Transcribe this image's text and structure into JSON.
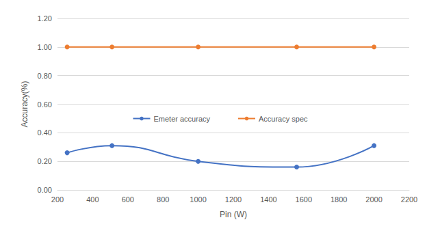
{
  "chart_data": {
    "type": "line",
    "x_label": "Pin (W)",
    "y_label": "Accuracy(%)",
    "x": [
      255,
      510,
      1000,
      1560,
      2000
    ],
    "series": [
      {
        "name": "Emeter accuracy",
        "color": "#4472c4",
        "values": [
          0.26,
          0.31,
          0.2,
          0.16,
          0.31
        ],
        "marker": "circle",
        "line_style": "smooth"
      },
      {
        "name": "Accuracy spec",
        "color": "#ed7d31",
        "values": [
          1.0,
          1.0,
          1.0,
          1.0,
          1.0
        ],
        "marker": "circle",
        "line_style": "solid"
      }
    ],
    "xlim": [
      200,
      2200
    ],
    "xticks": [
      200,
      400,
      600,
      800,
      1000,
      1200,
      1400,
      1600,
      1800,
      2000,
      2200
    ],
    "ylim": [
      0,
      1.2
    ],
    "yticks": [
      {
        "value": 0,
        "label": "0.00"
      },
      {
        "value": 0.2,
        "label": "0.20"
      },
      {
        "value": 0.4,
        "label": "0.40"
      },
      {
        "value": 0.6,
        "label": "0.60"
      },
      {
        "value": 0.8,
        "label": "0.80"
      },
      {
        "value": 1.0,
        "label": "1.00"
      },
      {
        "value": 1.2,
        "label": "1.20"
      }
    ],
    "grid": true,
    "legend": "center"
  }
}
